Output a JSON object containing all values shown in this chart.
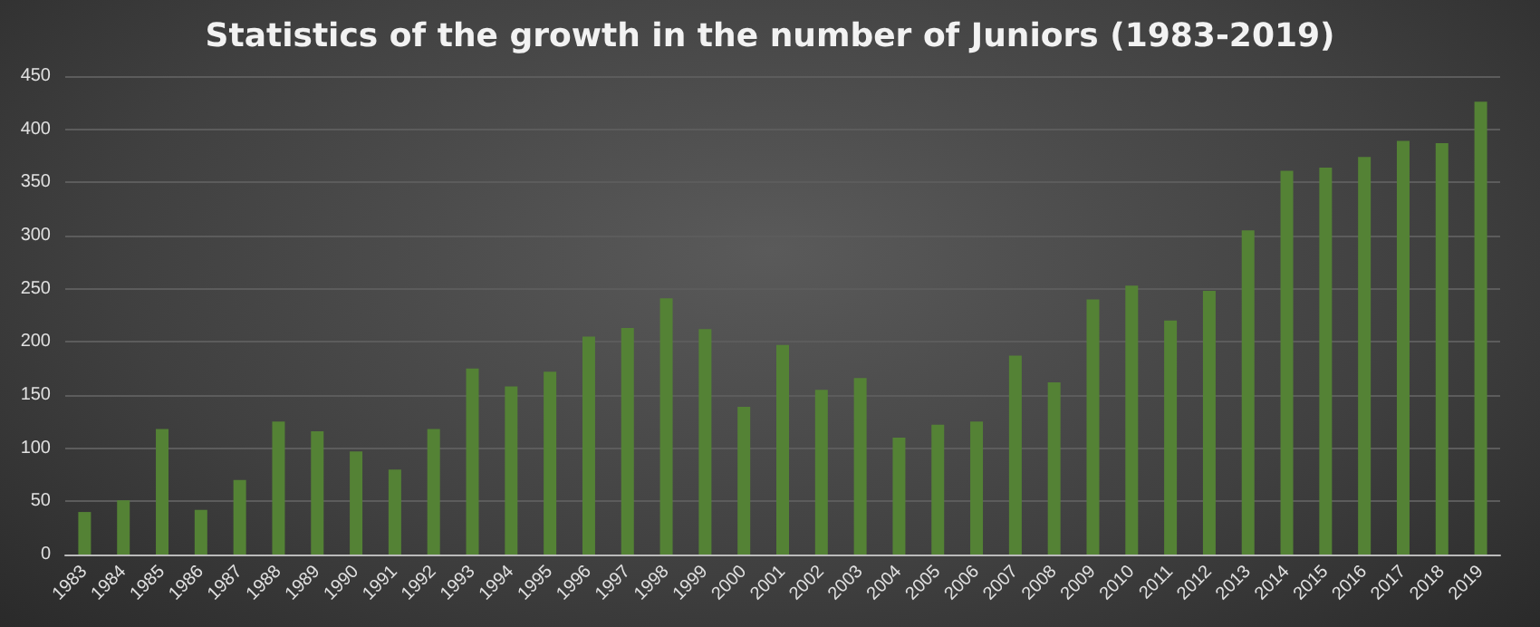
{
  "chart_data": {
    "type": "bar",
    "title": "Statistics of the growth in the number of Juniors (1983-2019)",
    "categories": [
      "1983",
      "1984",
      "1985",
      "1986",
      "1987",
      "1988",
      "1989",
      "1990",
      "1991",
      "1992",
      "1993",
      "1994",
      "1995",
      "1996",
      "1997",
      "1998",
      "1999",
      "2000",
      "2001",
      "2002",
      "2003",
      "2004",
      "2005",
      "2006",
      "2007",
      "2008",
      "2009",
      "2010",
      "2011",
      "2012",
      "2013",
      "2014",
      "2015",
      "2016",
      "2017",
      "2018",
      "2019"
    ],
    "values": [
      40,
      51,
      118,
      42,
      70,
      125,
      116,
      97,
      80,
      118,
      175,
      158,
      172,
      205,
      213,
      241,
      212,
      139,
      197,
      155,
      166,
      110,
      122,
      125,
      187,
      162,
      240,
      253,
      220,
      248,
      305,
      361,
      364,
      374,
      389,
      387,
      426
    ],
    "color": "#548235",
    "ylim": [
      0,
      450
    ],
    "yticks": [
      0,
      50,
      100,
      150,
      200,
      250,
      300,
      350,
      400,
      450
    ],
    "grid": "y"
  }
}
